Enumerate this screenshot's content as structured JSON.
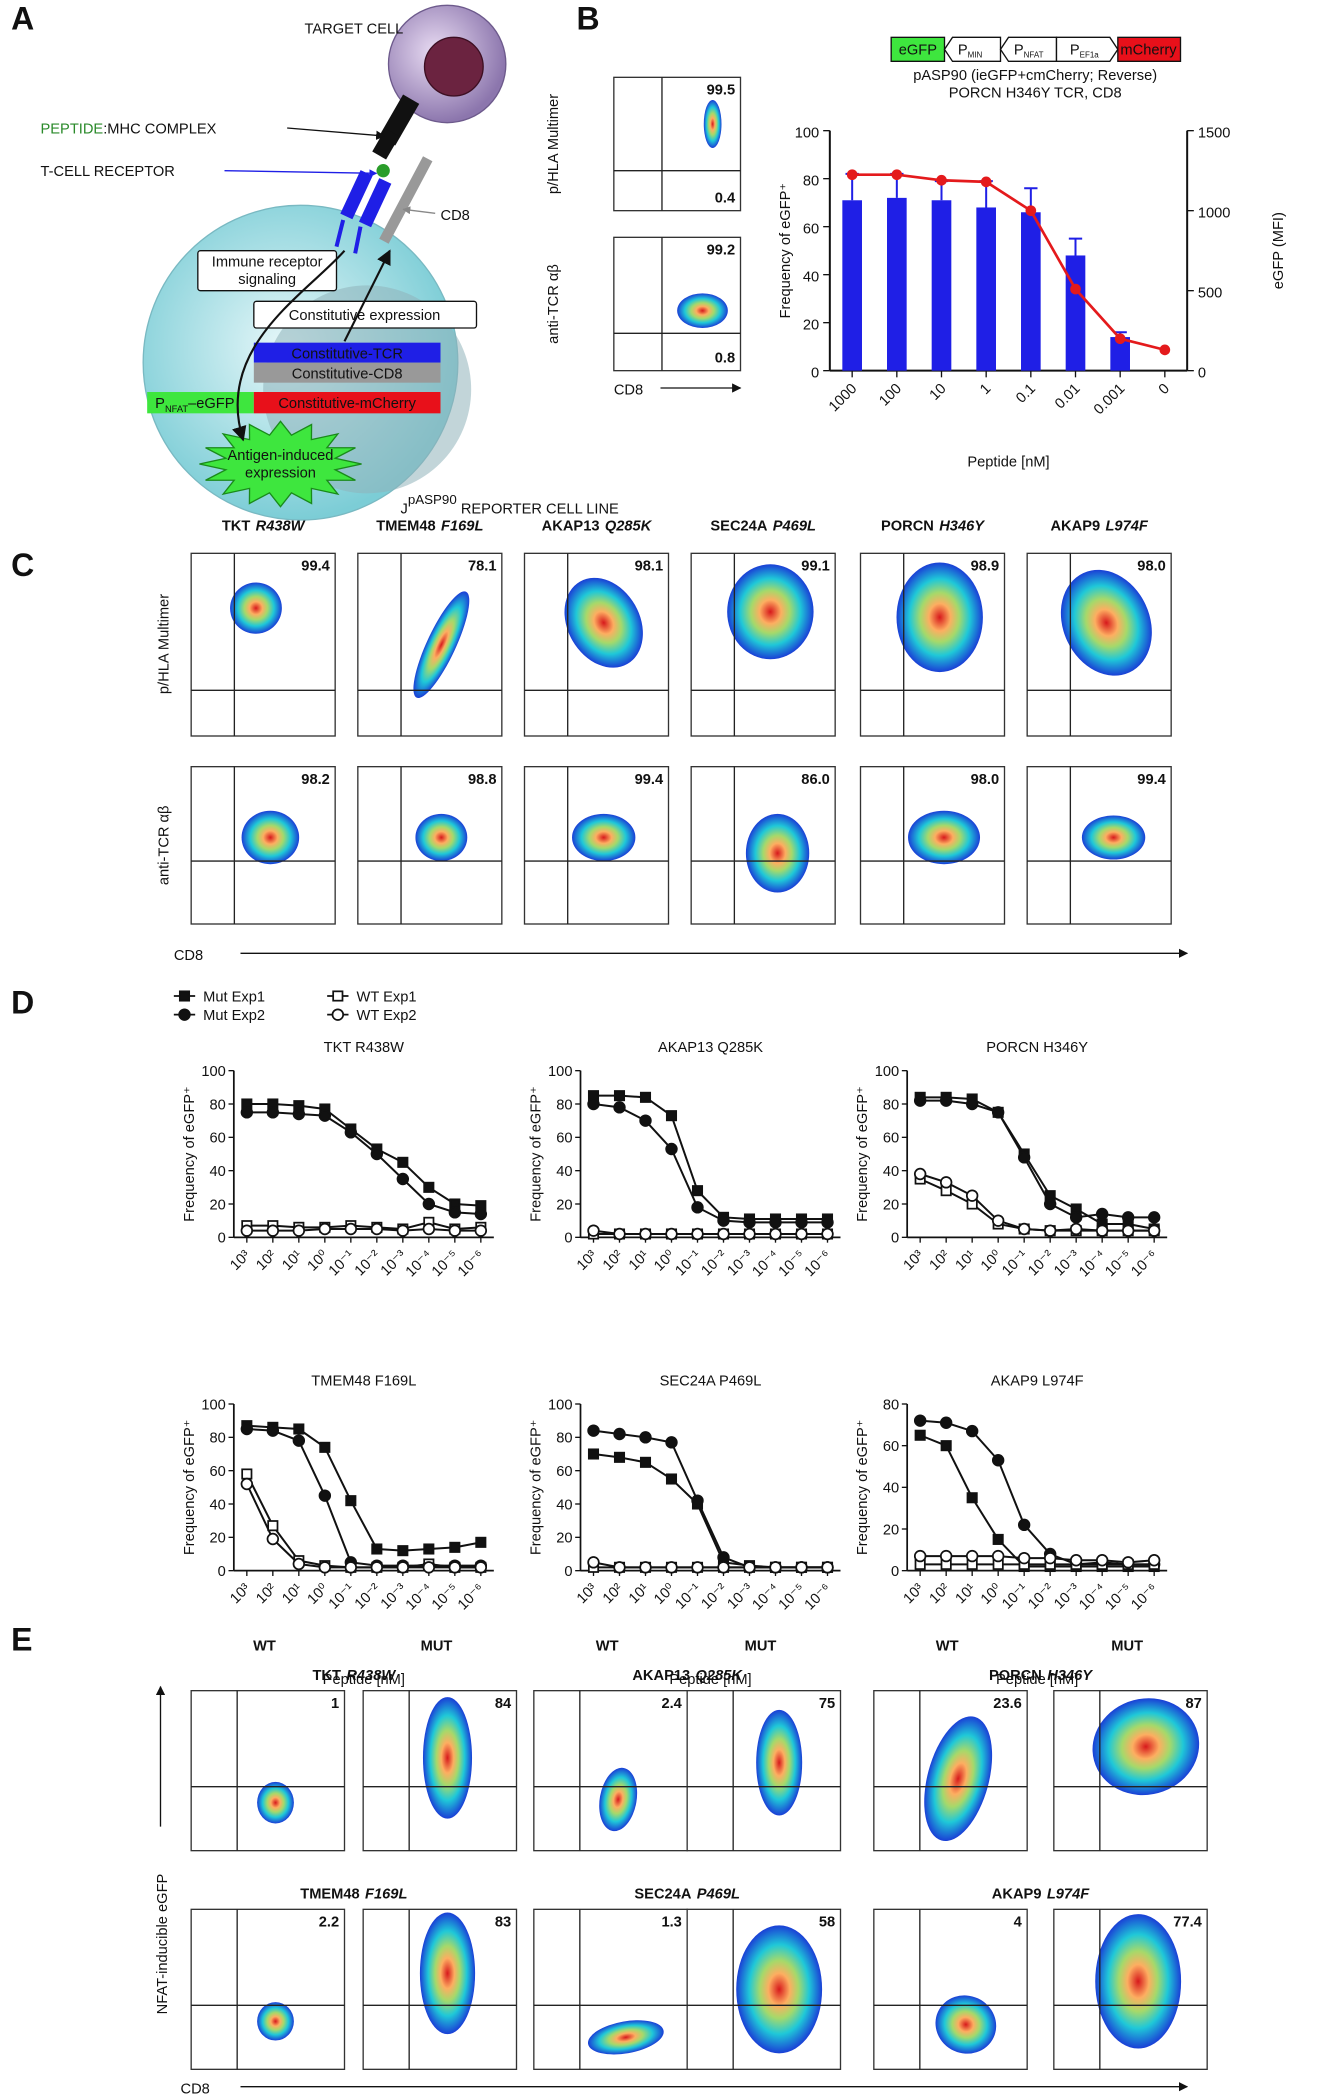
{
  "panel_labels": [
    "A",
    "B",
    "C",
    "D",
    "E"
  ],
  "diagram": {
    "target_cell": "TARGET CELL",
    "peptide": "PEPTIDE",
    "mhc_complex": ":MHC COMPLEX",
    "tcr": "T-CELL RECEPTOR",
    "cd8": "CD8",
    "signaling": [
      "Immune receptor",
      "signaling"
    ],
    "constitutive_expression": "Constitutive expression",
    "tcr_box": "Constitutive-TCR",
    "cd8_box": "Constitutive-CD8",
    "reporter": {
      "p": "P",
      "sub": "NFAT",
      "rest": "–eGFP"
    },
    "mcherry_box": "Constitutive-mCherry",
    "induced": [
      "Antigen-induced",
      "expression"
    ],
    "cell_line": {
      "j": "J",
      "sup": "pASP90",
      "rest": " REPORTER CELL LINE"
    }
  },
  "construct": {
    "egfp": "eGFP",
    "promoters": [
      {
        "p": "P",
        "sub": "MIN"
      },
      {
        "p": "P",
        "sub": "NFAT"
      },
      {
        "p": "P",
        "sub": "EF1a"
      }
    ],
    "mcherry": "mCherry",
    "caption": [
      "pASP90 (ieGFP+cmCherry; Reverse)",
      "PORCN H346Y TCR, CD8"
    ]
  },
  "flow_b": {
    "y_labels": [
      "p/HLA Multimer",
      "anti-TCR αβ"
    ],
    "x_label": "CD8",
    "upper_right": [
      "99.5",
      "99.2"
    ],
    "lower_right": [
      "0.4",
      "0.8"
    ]
  },
  "flow_c": {
    "titles": [
      {
        "gene": "TKT",
        "mutation": "R438W"
      },
      {
        "gene": "TMEM48",
        "mutation": "F169L"
      },
      {
        "gene": "AKAP13",
        "mutation": "Q285K"
      },
      {
        "gene": "SEC24A",
        "mutation": "P469L"
      },
      {
        "gene": "PORCN",
        "mutation": "H346Y"
      },
      {
        "gene": "AKAP9",
        "mutation": "L974F"
      }
    ],
    "y_labels": [
      "p/HLA Multimer",
      "anti-TCR αβ"
    ],
    "x_label": "CD8",
    "rows": [
      [
        "99.4",
        "78.1",
        "98.1",
        "99.1",
        "98.9",
        "98.0"
      ],
      [
        "98.2",
        "98.8",
        "99.4",
        "86.0",
        "98.0",
        "99.4"
      ]
    ]
  },
  "legend_d": [
    {
      "name": "Mut Exp1",
      "marker": "square",
      "filled": true
    },
    {
      "name": "Mut Exp2",
      "marker": "circle",
      "filled": true
    },
    {
      "name": "WT Exp1",
      "marker": "square",
      "filled": false
    },
    {
      "name": "WT Exp2",
      "marker": "circle",
      "filled": false
    }
  ],
  "chart_data": [
    {
      "type": "bar",
      "categories": [
        "1000",
        "100",
        "10",
        "1",
        "0.1",
        "0.01",
        "0.001",
        "0"
      ],
      "x_label": "Peptide [nM]",
      "y_label": "Frequency of eGFP⁺",
      "y2_label": "eGFP (MFI)",
      "ylim": [
        0,
        100
      ],
      "yticks": [
        0,
        20,
        40,
        60,
        80,
        100
      ],
      "y2lim": [
        0,
        1500
      ],
      "y2ticks": [
        0,
        500,
        1000,
        1500
      ],
      "series": [
        {
          "color": "#1f1fe6",
          "values": [
            71,
            72,
            71,
            68,
            66,
            48,
            14,
            null
          ],
          "errors": [
            11,
            10,
            8,
            11,
            10,
            7,
            2,
            null
          ]
        },
        {
          "axis": "y2",
          "color": "#e41a1c",
          "values": [
            1225,
            1225,
            1190,
            1180,
            1000,
            510,
            200,
            130
          ]
        }
      ]
    },
    {
      "type": "line",
      "title": "TKT R438W",
      "y_label": "Frequency of eGFP⁺",
      "categories": [
        "10³",
        "10²",
        "10¹",
        "10⁰",
        "10⁻¹",
        "10⁻²",
        "10⁻³",
        "10⁻⁴",
        "10⁻⁵",
        "10⁻⁶"
      ],
      "ylim": [
        0,
        100
      ],
      "yticks": [
        0,
        20,
        40,
        60,
        80,
        100
      ],
      "series": [
        {
          "values": [
            80,
            80,
            79,
            77,
            65,
            53,
            45,
            30,
            20,
            19
          ]
        },
        {
          "values": [
            75,
            75,
            74,
            73,
            63,
            50,
            35,
            20,
            15,
            14
          ]
        },
        {
          "values": [
            7,
            7,
            6,
            6,
            7,
            6,
            5,
            9,
            5,
            6
          ]
        },
        {
          "values": [
            4,
            4,
            4,
            5,
            5,
            5,
            4,
            5,
            4,
            4
          ]
        }
      ]
    },
    {
      "type": "line",
      "title": "AKAP13 Q285K",
      "y_label": "Frequency of eGFP⁺",
      "categories": [
        "10³",
        "10²",
        "10¹",
        "10⁰",
        "10⁻¹",
        "10⁻²",
        "10⁻³",
        "10⁻⁴",
        "10⁻⁵",
        "10⁻⁶"
      ],
      "ylim": [
        0,
        100
      ],
      "yticks": [
        0,
        20,
        40,
        60,
        80,
        100
      ],
      "series": [
        {
          "values": [
            85,
            85,
            84,
            73,
            28,
            12,
            11,
            11,
            11,
            11
          ]
        },
        {
          "values": [
            80,
            78,
            70,
            53,
            18,
            10,
            9,
            9,
            9,
            9
          ]
        },
        {
          "values": [
            2,
            2,
            2,
            2,
            2,
            2,
            2,
            2,
            2,
            2
          ]
        },
        {
          "values": [
            4,
            2,
            2,
            2,
            2,
            2,
            2,
            2,
            2,
            2
          ]
        }
      ]
    },
    {
      "type": "line",
      "title": "PORCN H346Y",
      "y_label": "Frequency of eGFP⁺",
      "categories": [
        "10³",
        "10²",
        "10¹",
        "10⁰",
        "10⁻¹",
        "10⁻²",
        "10⁻³",
        "10⁻⁴",
        "10⁻⁵",
        "10⁻⁶"
      ],
      "ylim": [
        0,
        100
      ],
      "yticks": [
        0,
        20,
        40,
        60,
        80,
        100
      ],
      "series": [
        {
          "values": [
            84,
            84,
            83,
            75,
            50,
            25,
            17,
            8,
            8,
            5
          ]
        },
        {
          "values": [
            82,
            82,
            80,
            75,
            48,
            20,
            12,
            14,
            12,
            12
          ]
        },
        {
          "values": [
            35,
            28,
            20,
            8,
            5,
            4,
            4,
            4,
            4,
            4
          ]
        },
        {
          "values": [
            38,
            33,
            25,
            10,
            5,
            4,
            5,
            4,
            4,
            4
          ]
        }
      ]
    },
    {
      "type": "line",
      "title": "TMEM48 F169L",
      "y_label": "Frequency of eGFP⁺",
      "x_label": "Peptide  [nM]",
      "categories": [
        "10³",
        "10²",
        "10¹",
        "10⁰",
        "10⁻¹",
        "10⁻²",
        "10⁻³",
        "10⁻⁴",
        "10⁻⁵",
        "10⁻⁶"
      ],
      "ylim": [
        0,
        100
      ],
      "yticks": [
        0,
        20,
        40,
        60,
        80,
        100
      ],
      "series": [
        {
          "values": [
            87,
            86,
            85,
            74,
            42,
            13,
            12,
            13,
            14,
            17
          ]
        },
        {
          "values": [
            85,
            84,
            78,
            45,
            5,
            3,
            3,
            3,
            3,
            3
          ]
        },
        {
          "values": [
            58,
            27,
            6,
            3,
            2,
            2,
            2,
            4,
            2,
            2
          ]
        },
        {
          "values": [
            52,
            19,
            4,
            2,
            2,
            2,
            2,
            2,
            2,
            2
          ]
        }
      ]
    },
    {
      "type": "line",
      "title": "SEC24A P469L",
      "y_label": "Frequency of eGFP⁺",
      "x_label": "Peptide  [nM]",
      "categories": [
        "10³",
        "10²",
        "10¹",
        "10⁰",
        "10⁻¹",
        "10⁻²",
        "10⁻³",
        "10⁻⁴",
        "10⁻⁵",
        "10⁻⁶"
      ],
      "ylim": [
        0,
        100
      ],
      "yticks": [
        0,
        20,
        40,
        60,
        80,
        100
      ],
      "series": [
        {
          "values": [
            70,
            68,
            65,
            55,
            40,
            5,
            3,
            2,
            2,
            2
          ]
        },
        {
          "values": [
            84,
            82,
            80,
            77,
            42,
            8,
            2,
            2,
            2,
            2
          ]
        },
        {
          "values": [
            2,
            2,
            2,
            2,
            2,
            2,
            2,
            2,
            2,
            2
          ]
        },
        {
          "values": [
            5,
            2,
            2,
            2,
            2,
            2,
            2,
            2,
            2,
            2
          ]
        }
      ]
    },
    {
      "type": "line",
      "title": "AKAP9 L974F",
      "y_label": "Frequency of eGFP⁺",
      "x_label": "Peptide  [nM]",
      "categories": [
        "10³",
        "10²",
        "10¹",
        "10⁰",
        "10⁻¹",
        "10⁻²",
        "10⁻³",
        "10⁻⁴",
        "10⁻⁵",
        "10⁻⁶"
      ],
      "ylim": [
        0,
        80
      ],
      "yticks": [
        0,
        20,
        40,
        60,
        80
      ],
      "series": [
        {
          "values": [
            65,
            60,
            35,
            15,
            2,
            2,
            2,
            2,
            2,
            2
          ]
        },
        {
          "values": [
            72,
            71,
            67,
            53,
            22,
            8,
            3,
            4,
            3,
            3
          ]
        },
        {
          "values": [
            3,
            3,
            3,
            3,
            3,
            3,
            3,
            3,
            3,
            3
          ]
        },
        {
          "values": [
            7,
            7,
            7,
            7,
            6,
            6,
            5,
            5,
            4,
            5
          ]
        }
      ]
    }
  ],
  "flow_e": {
    "column_headers": [
      "WT",
      "MUT",
      "WT",
      "MUT",
      "WT",
      "MUT"
    ],
    "titles": [
      {
        "gene": "TKT",
        "mutation": "R438W"
      },
      {
        "gene": "AKAP13",
        "mutation": "Q285K"
      },
      {
        "gene": "PORCN",
        "mutation": "H346Y"
      },
      {
        "gene": "TMEM48",
        "mutation": "F169L"
      },
      {
        "gene": "SEC24A",
        "mutation": "P469L"
      },
      {
        "gene": "AKAP9",
        "mutation": "L974F"
      }
    ],
    "y_label": "NFAT-inducible eGFP",
    "x_label": "CD8",
    "values": [
      [
        "1",
        "84",
        "2.4",
        "75",
        "23.6",
        "87"
      ],
      [
        "2.2",
        "83",
        "1.3",
        "58",
        "4",
        "77.4"
      ]
    ]
  }
}
